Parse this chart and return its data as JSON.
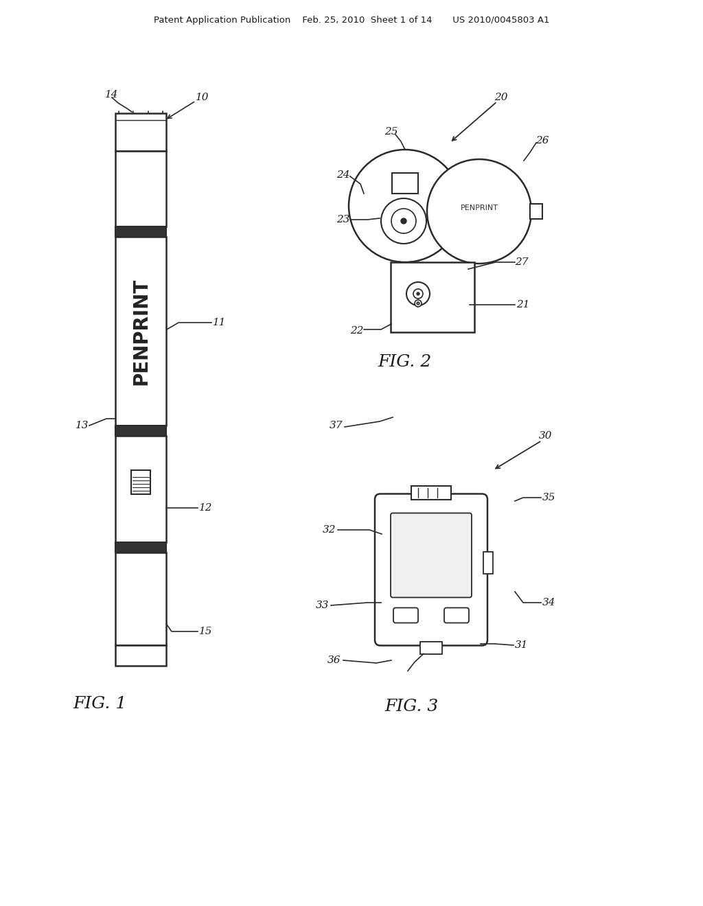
{
  "bg_color": "#ffffff",
  "line_color": "#2a2a2a",
  "text_color": "#1a1a1a",
  "header_text": "Patent Application Publication    Feb. 25, 2010  Sheet 1 of 14       US 2010/0045803 A1",
  "fig1_label": "FIG. 1",
  "fig2_label": "FIG. 2",
  "fig3_label": "FIG. 3"
}
